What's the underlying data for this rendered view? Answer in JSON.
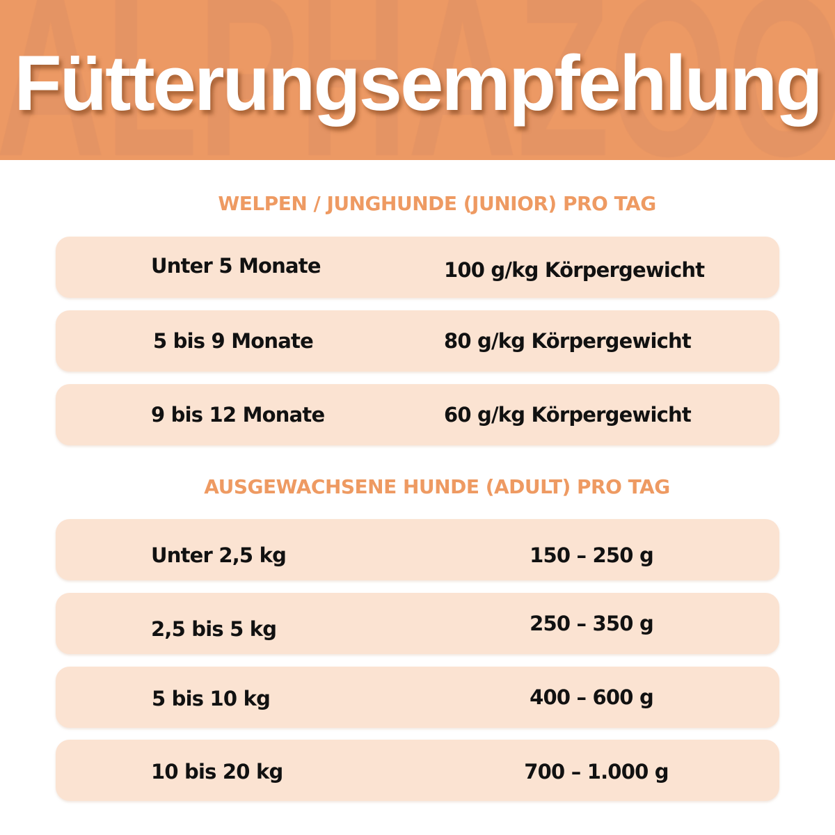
{
  "header": {
    "title": "Fütterungsempfehlung",
    "watermark": "ALPHAZOO",
    "background": "#ec9964"
  },
  "junior": {
    "heading": "WELPEN / JUNGHUNDE (JUNIOR) PRO TAG",
    "rows": [
      {
        "label": "Unter 5 Monate",
        "value": "100 g/kg Körpergewicht"
      },
      {
        "label": "5 bis 9 Monate",
        "value": "80 g/kg Körpergewicht"
      },
      {
        "label": "9 bis 12 Monate",
        "value": "60 g/kg Körpergewicht"
      }
    ]
  },
  "adult": {
    "heading": "AUSGEWACHSENE HUNDE (ADULT) PRO TAG",
    "rows": [
      {
        "label": "Unter 2,5 kg",
        "value": "150 – 250 g"
      },
      {
        "label": "2,5 bis 5 kg",
        "value": "250 – 350 g"
      },
      {
        "label": "5 bis 10 kg",
        "value": "400 – 600 g"
      },
      {
        "label": "10 bis 20 kg",
        "value": "700 – 1.000 g"
      }
    ]
  },
  "colors": {
    "accent": "#ee9a62",
    "row": "#fbe3d2"
  }
}
